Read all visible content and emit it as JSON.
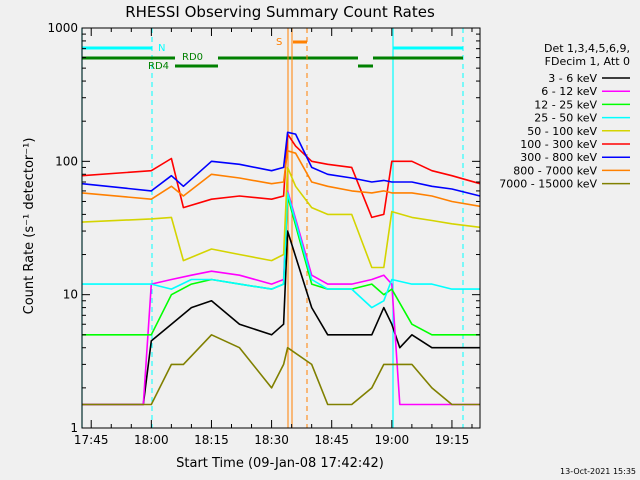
{
  "chart_data": {
    "type": "line",
    "title": "RHESSI Observing Summary Count Rates",
    "xlabel": "Start Time (09-Jan-08 17:42:42)",
    "ylabel": "Count Rate (s⁻¹ detector⁻¹)",
    "y_scale": "log",
    "ylim": [
      1,
      1000
    ],
    "y_ticks": [
      {
        "value": 1,
        "label": "1"
      },
      {
        "value": 10,
        "label": "10"
      },
      {
        "value": 100,
        "label": "100"
      },
      {
        "value": 1000,
        "label": "1000"
      }
    ],
    "xlim": [
      "17:42:42",
      "19:22:00"
    ],
    "x_ticks": [
      "17:45",
      "18:00",
      "18:15",
      "18:30",
      "18:45",
      "19:00",
      "19:15"
    ],
    "legend_position": "right",
    "legend_header": [
      "Det 1,3,4,5,6,9,",
      "FDecim 1, Att 0"
    ],
    "series": [
      {
        "name": "3 - 6 keV",
        "color": "#000000",
        "x": [
          "17:42:42",
          "17:58",
          "18:00",
          "18:05",
          "18:10",
          "18:15",
          "18:22",
          "18:30",
          "18:33",
          "18:34",
          "18:40",
          "18:44",
          "18:50",
          "18:55",
          "18:58",
          "19:00",
          "19:02",
          "19:05",
          "19:10",
          "19:15",
          "19:22"
        ],
        "y": [
          1.5,
          1.5,
          4.5,
          6,
          8,
          9,
          6,
          5,
          6,
          30,
          8,
          5,
          5,
          5,
          8,
          6,
          4,
          5,
          4,
          4,
          4
        ]
      },
      {
        "name": "6 - 12 keV",
        "color": "#ff00ff",
        "x": [
          "17:42:42",
          "17:58",
          "18:00",
          "18:05",
          "18:10",
          "18:15",
          "18:22",
          "18:30",
          "18:33",
          "18:34",
          "18:40",
          "18:44",
          "18:50",
          "18:55",
          "18:58",
          "19:00",
          "19:02",
          "19:05",
          "19:10",
          "19:15",
          "19:22"
        ],
        "y": [
          1.5,
          1.5,
          12,
          13,
          14,
          15,
          14,
          12,
          13,
          60,
          14,
          12,
          12,
          13,
          14,
          12,
          1.5,
          1.5,
          1.5,
          1.5,
          1.5
        ]
      },
      {
        "name": "12 - 25 keV",
        "color": "#00ff00",
        "x": [
          "17:42:42",
          "18:00",
          "18:05",
          "18:10",
          "18:15",
          "18:22",
          "18:30",
          "18:33",
          "18:34",
          "18:40",
          "18:44",
          "18:50",
          "18:55",
          "18:58",
          "19:00",
          "19:05",
          "19:10",
          "19:15",
          "19:22"
        ],
        "y": [
          5,
          5,
          10,
          12,
          13,
          12,
          11,
          12,
          55,
          12,
          11,
          11,
          12,
          10,
          11,
          6,
          5,
          5,
          5
        ]
      },
      {
        "name": "25 - 50 keV",
        "color": "#00ffff",
        "x": [
          "17:42:42",
          "18:00",
          "18:05",
          "18:10",
          "18:15",
          "18:22",
          "18:30",
          "18:33",
          "18:34",
          "18:40",
          "18:44",
          "18:50",
          "18:55",
          "18:58",
          "19:00",
          "19:05",
          "19:10",
          "19:15",
          "19:22"
        ],
        "y": [
          12,
          12,
          11,
          13,
          13,
          12,
          11,
          12,
          58,
          13,
          11,
          11,
          8,
          9,
          13,
          12,
          12,
          11,
          11
        ]
      },
      {
        "name": "50 - 100 keV",
        "color": "#d4d400",
        "x": [
          "17:42:42",
          "18:00",
          "18:05",
          "18:08",
          "18:15",
          "18:22",
          "18:30",
          "18:33",
          "18:34",
          "18:36",
          "18:40",
          "18:44",
          "18:50",
          "18:55",
          "18:58",
          "19:00",
          "19:05",
          "19:10",
          "19:15",
          "19:22"
        ],
        "y": [
          35,
          37,
          38,
          18,
          22,
          20,
          18,
          20,
          90,
          65,
          45,
          40,
          40,
          16,
          16,
          42,
          38,
          36,
          34,
          32
        ]
      },
      {
        "name": "100 - 300 keV",
        "color": "#ff0000",
        "x": [
          "17:42:42",
          "18:00",
          "18:05",
          "18:08",
          "18:15",
          "18:22",
          "18:30",
          "18:33",
          "18:34",
          "18:36",
          "18:40",
          "18:44",
          "18:50",
          "18:55",
          "18:58",
          "19:00",
          "19:05",
          "19:10",
          "19:15",
          "19:22"
        ],
        "y": [
          78,
          85,
          105,
          45,
          52,
          55,
          52,
          55,
          160,
          130,
          100,
          95,
          90,
          38,
          40,
          100,
          100,
          85,
          78,
          68
        ]
      },
      {
        "name": "300 - 800 keV",
        "color": "#0000ff",
        "x": [
          "17:42:42",
          "18:00",
          "18:05",
          "18:08",
          "18:15",
          "18:22",
          "18:30",
          "18:33",
          "18:34",
          "18:36",
          "18:40",
          "18:44",
          "18:50",
          "18:55",
          "18:58",
          "19:00",
          "19:05",
          "19:10",
          "19:15",
          "19:22"
        ],
        "y": [
          68,
          60,
          78,
          65,
          100,
          95,
          85,
          90,
          165,
          160,
          90,
          80,
          75,
          70,
          72,
          70,
          70,
          65,
          62,
          55
        ]
      },
      {
        "name": "800 - 7000 keV",
        "color": "#ff8000",
        "x": [
          "17:42:42",
          "18:00",
          "18:05",
          "18:08",
          "18:15",
          "18:22",
          "18:30",
          "18:33",
          "18:34",
          "18:36",
          "18:40",
          "18:44",
          "18:50",
          "18:55",
          "18:58",
          "19:00",
          "19:05",
          "19:10",
          "19:15",
          "19:22"
        ],
        "y": [
          58,
          52,
          65,
          55,
          80,
          75,
          68,
          70,
          120,
          115,
          70,
          65,
          60,
          58,
          60,
          58,
          58,
          55,
          50,
          46
        ]
      },
      {
        "name": "7000 - 15000 keV",
        "color": "#808000",
        "x": [
          "17:42:42",
          "18:00",
          "18:05",
          "18:08",
          "18:15",
          "18:22",
          "18:30",
          "18:33",
          "18:34",
          "18:40",
          "18:44",
          "18:50",
          "18:55",
          "18:58",
          "19:00",
          "19:05",
          "19:10",
          "19:15",
          "19:22"
        ],
        "y": [
          1.5,
          1.5,
          3,
          3,
          5,
          4,
          2,
          3,
          4,
          3,
          1.5,
          1.5,
          2,
          3,
          3,
          3,
          2,
          1.5,
          1.5
        ]
      }
    ],
    "annotations": [
      {
        "label": "N",
        "color": "#00ffff"
      },
      {
        "label": "RD4",
        "color": "#008000"
      },
      {
        "label": "RD0",
        "color": "#008000"
      },
      {
        "label": "S",
        "color": "#ff8000"
      }
    ]
  },
  "footer_timestamp": "13-Oct-2021 15:35"
}
